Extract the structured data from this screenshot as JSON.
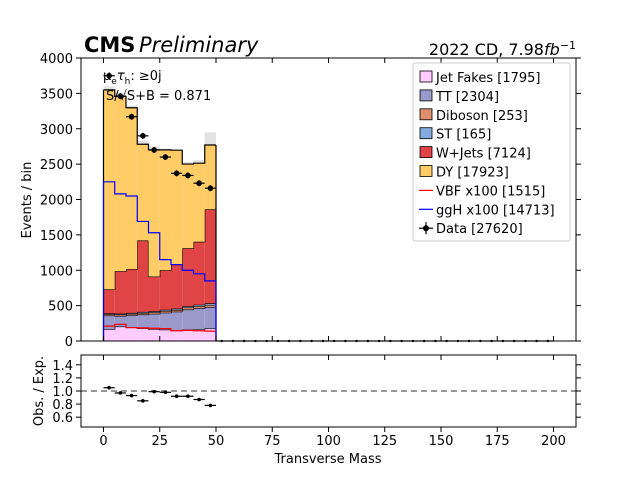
{
  "header": {
    "experiment": "CMS",
    "status": "Preliminary",
    "lumi_prefix": "2022 CD, 7.98",
    "lumi_unit": "fb",
    "lumi_exp": "−1"
  },
  "annotations": {
    "channel": "μ",
    "channel_sub": "e",
    "channel_tau": "τ",
    "channel_tau_sub": "h",
    "channel_cut": ": ≥0j",
    "significance_label": "S/√S+B",
    "significance_value": "= 0.871"
  },
  "chart_data": {
    "type": "bar",
    "subtype": "stacked-histogram",
    "title": "",
    "xlabel": "Transverse Mass",
    "ylabel": "Events / bin",
    "xlim": [
      -10,
      210
    ],
    "ylim": [
      0,
      4000
    ],
    "xticks": [
      0,
      25,
      50,
      75,
      100,
      125,
      150,
      175,
      200
    ],
    "yticks": [
      0,
      500,
      1000,
      1500,
      2000,
      2500,
      3000,
      3500,
      4000
    ],
    "bin_edges": [
      0,
      5,
      10,
      15,
      20,
      25,
      30,
      35,
      40,
      45,
      50,
      55,
      60,
      65,
      70,
      75,
      80,
      85,
      90,
      95,
      100,
      105,
      110,
      115,
      120,
      125,
      130,
      135,
      140,
      145,
      150,
      155,
      160,
      165,
      170,
      175,
      180,
      185,
      190,
      195,
      200
    ],
    "stack_order": [
      "Jet Fakes",
      "TT",
      "Diboson",
      "ST",
      "W+Jets",
      "DY"
    ],
    "series": [
      {
        "name": "Jet Fakes",
        "legend": "Jet Fakes [1795]",
        "kind": "stack",
        "color": "#ffccff",
        "values": [
          170,
          205,
          190,
          180,
          170,
          160,
          150,
          160,
          165,
          180
        ]
      },
      {
        "name": "TT",
        "legend": "TT [2304]",
        "kind": "stack",
        "color": "#9999cc",
        "values": [
          190,
          150,
          175,
          195,
          215,
          240,
          265,
          285,
          300,
          300
        ]
      },
      {
        "name": "Diboson",
        "legend": "Diboson [253]",
        "kind": "stack",
        "color": "#de8f6e",
        "values": [
          20,
          20,
          20,
          22,
          22,
          25,
          25,
          28,
          28,
          30
        ]
      },
      {
        "name": "ST",
        "legend": "ST [165]",
        "kind": "stack",
        "color": "#85aadd",
        "values": [
          10,
          12,
          12,
          14,
          14,
          16,
          17,
          18,
          20,
          22
        ]
      },
      {
        "name": "W+Jets",
        "legend": "W+Jets [7124]",
        "kind": "stack",
        "color": "#e04444",
        "values": [
          340,
          600,
          620,
          1010,
          490,
          560,
          630,
          820,
          890,
          1330
        ]
      },
      {
        "name": "DY",
        "legend": "DY [17923]",
        "kind": "stack",
        "color": "#ffcc66",
        "values": [
          2820,
          2470,
          2280,
          1360,
          1790,
          1700,
          1610,
          1190,
          1110,
          908
        ]
      },
      {
        "name": "VBF x100",
        "legend": "VBF x100 [1515]",
        "kind": "line",
        "color": "#ff0000",
        "values": [
          210,
          235,
          190,
          185,
          180,
          175,
          145,
          150,
          145,
          140
        ]
      },
      {
        "name": "ggH x100",
        "legend": "ggH x100 [14713]",
        "kind": "line",
        "color": "#0000ff",
        "values": [
          2250,
          2080,
          2050,
          1690,
          1530,
          1150,
          1080,
          1000,
          950,
          850
        ]
      },
      {
        "name": "Data",
        "legend": "Data [27620]",
        "kind": "points",
        "color": "#000000",
        "x": [
          2.5,
          7.5,
          12.5,
          17.5,
          22.5,
          27.5,
          32.5,
          37.5,
          42.5,
          47.5,
          52.5,
          57.5,
          62.5,
          67.5,
          72.5,
          77.5,
          82.5,
          87.5,
          92.5,
          97.5,
          102.5,
          107.5,
          112.5,
          117.5,
          122.5,
          127.5,
          132.5,
          137.5,
          142.5,
          147.5,
          152.5,
          157.5,
          162.5,
          167.5,
          172.5,
          177.5,
          182.5,
          187.5,
          192.5,
          197.5
        ],
        "values": [
          3750,
          3460,
          3170,
          2900,
          2700,
          2600,
          2370,
          2340,
          2230,
          2160,
          0,
          0,
          0,
          0,
          0,
          0,
          0,
          0,
          0,
          0,
          0,
          0,
          0,
          0,
          0,
          0,
          0,
          0,
          0,
          0,
          0,
          0,
          0,
          0,
          0,
          0,
          0,
          0,
          0,
          0
        ]
      }
    ],
    "uncertainty_band": {
      "upper": [
        3600,
        3510,
        3330,
        2830,
        2750,
        2720,
        2680,
        2530,
        2560,
        2950
      ],
      "lower": [
        3500,
        3440,
        3200,
        2740,
        2650,
        2620,
        2570,
        2450,
        2470,
        2620
      ]
    },
    "ratio_panel": {
      "ylabel": "Obs. / Exp.",
      "ylim": [
        0.45,
        1.55
      ],
      "yticks": [
        0.6,
        0.8,
        1.0,
        1.2,
        1.4
      ],
      "reference_line": 1.0,
      "x": [
        2.5,
        7.5,
        12.5,
        17.5,
        22.5,
        27.5,
        32.5,
        37.5,
        42.5,
        47.5
      ],
      "values": [
        1.05,
        0.97,
        0.93,
        0.85,
        0.99,
        0.98,
        0.92,
        0.92,
        0.87,
        0.78
      ]
    },
    "legend_position": "top-right",
    "grid": false
  }
}
